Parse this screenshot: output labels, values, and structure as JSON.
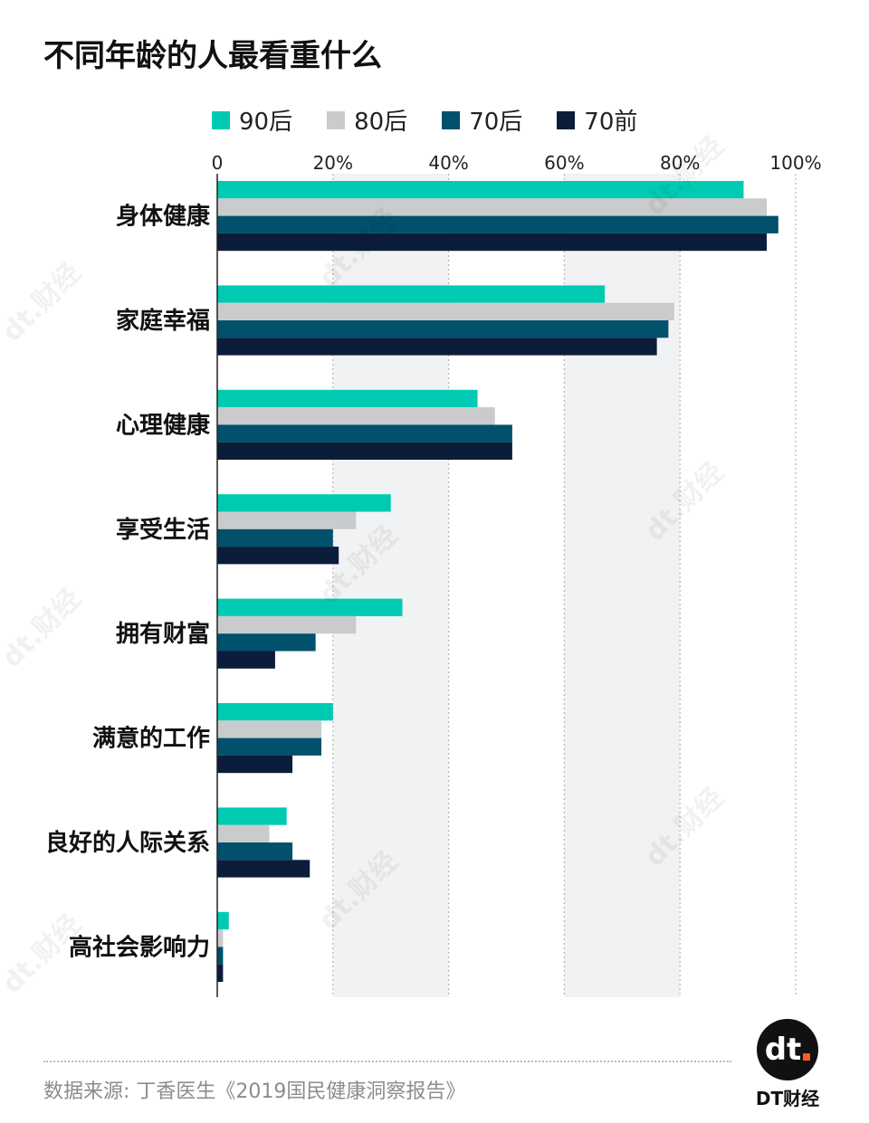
{
  "title": "不同年龄的人最看重什么",
  "source": "数据来源: 丁香医生《2019国民健康洞察报告》",
  "brand": {
    "logo_text": "dt",
    "name": "DT财经",
    "watermark": "dt.财经"
  },
  "colors": {
    "s90": "#00cbb2",
    "s80": "#c9cbcc",
    "s70": "#01506c",
    "s70q": "#0c1c3b",
    "band": "#f1f2f4",
    "grid": "#b5b5b5"
  },
  "chart_data": {
    "type": "bar",
    "orientation": "horizontal",
    "categories": [
      "身体健康",
      "家庭幸福",
      "心理健康",
      "享受生活",
      "拥有财富",
      "满意的工作",
      "良好的人际关系",
      "高社会影响力"
    ],
    "series": [
      {
        "name": "90后",
        "color": "#00cbb2",
        "values": [
          91,
          67,
          45,
          30,
          32,
          20,
          12,
          2
        ]
      },
      {
        "name": "80后",
        "color": "#c9cbcc",
        "values": [
          95,
          79,
          48,
          24,
          24,
          18,
          9,
          1
        ]
      },
      {
        "name": "70后",
        "color": "#01506c",
        "values": [
          97,
          78,
          51,
          20,
          17,
          18,
          13,
          1
        ]
      },
      {
        "name": "70前",
        "color": "#0c1c3b",
        "values": [
          95,
          76,
          51,
          21,
          10,
          13,
          16,
          1
        ]
      }
    ],
    "x_ticks": [
      "0",
      "20%",
      "40%",
      "60%",
      "80%",
      "100%"
    ],
    "xlim": [
      0,
      100
    ],
    "legend_position": "top",
    "grid": true
  }
}
